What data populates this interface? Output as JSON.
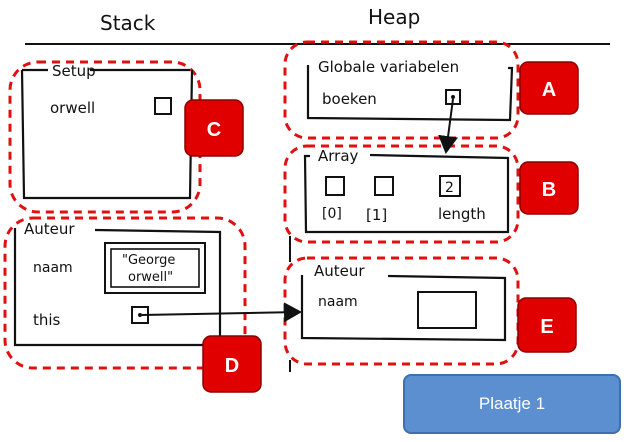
{
  "headings": {
    "stack": "Stack",
    "heap": "Heap"
  },
  "frames": {
    "setup": {
      "title": "Setup",
      "var": "orwell"
    },
    "auteur_stack": {
      "title": "Auteur",
      "naam_label": "naam",
      "naam_value_line1": "\"George",
      "naam_value_line2": "orwell\"",
      "this_label": "this"
    }
  },
  "heap": {
    "globals": {
      "title": "Globale variabelen",
      "var": "boeken"
    },
    "array": {
      "title": "Array",
      "index0": "[0]",
      "index1": "[1]",
      "length_label": "length",
      "length_value": "2"
    },
    "auteur_obj": {
      "title": "Auteur",
      "naam_label": "naam"
    }
  },
  "badges": {
    "a": "A",
    "b": "B",
    "c": "C",
    "d": "D",
    "e": "E"
  },
  "button": {
    "label": "Plaatje 1"
  },
  "colors": {
    "badge": "#e00000",
    "dashed": "#e01010",
    "button": "#5b8fd0"
  }
}
